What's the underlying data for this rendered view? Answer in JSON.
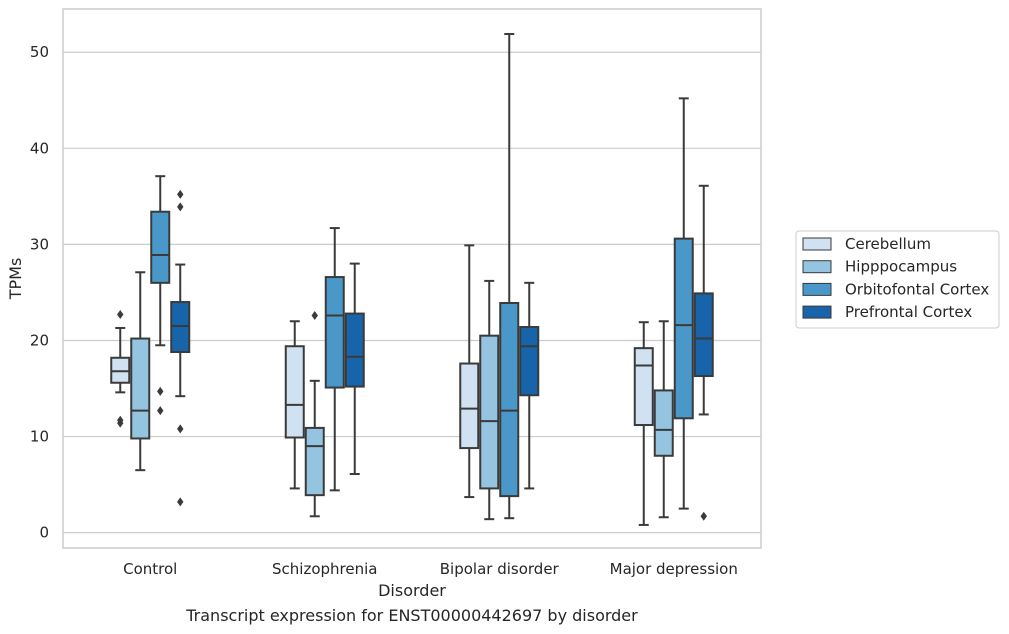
{
  "caption": "Transcript expression for ENST00000442697 by disorder",
  "chart_data": {
    "type": "box",
    "xlabel": "Disorder",
    "ylabel": "TPMs",
    "ylim": [
      -1.6,
      54.5
    ],
    "yticks": [
      0,
      10,
      20,
      30,
      40,
      50
    ],
    "grid": "horizontal",
    "legend_position": "right",
    "categories": [
      "Control",
      "Schizophrenia",
      "Bipolar disorder",
      "Major depression"
    ],
    "series": [
      {
        "name": "Cerebellum",
        "color": "#d0e1f2",
        "boxes": [
          {
            "whislo": 14.6,
            "q1": 15.6,
            "med": 16.8,
            "q3": 18.2,
            "whishi": 21.3,
            "fliers": [
              22.7,
              11.7,
              11.4
            ]
          },
          {
            "whislo": 4.6,
            "q1": 9.9,
            "med": 13.3,
            "q3": 19.4,
            "whishi": 22.0,
            "fliers": []
          },
          {
            "whislo": 3.7,
            "q1": 8.8,
            "med": 12.9,
            "q3": 17.6,
            "whishi": 29.9,
            "fliers": []
          },
          {
            "whislo": 0.8,
            "q1": 11.2,
            "med": 17.4,
            "q3": 19.2,
            "whishi": 21.9,
            "fliers": []
          }
        ]
      },
      {
        "name": "Hipppocampus",
        "color": "#94c4df",
        "boxes": [
          {
            "whislo": 6.5,
            "q1": 9.8,
            "med": 12.7,
            "q3": 20.2,
            "whishi": 27.1,
            "fliers": []
          },
          {
            "whislo": 1.7,
            "q1": 3.9,
            "med": 9.0,
            "q3": 10.9,
            "whishi": 15.8,
            "fliers": [
              22.6
            ]
          },
          {
            "whislo": 1.4,
            "q1": 4.6,
            "med": 11.6,
            "q3": 20.5,
            "whishi": 26.2,
            "fliers": []
          },
          {
            "whislo": 1.6,
            "q1": 8.0,
            "med": 10.7,
            "q3": 14.8,
            "whishi": 22.0,
            "fliers": []
          }
        ]
      },
      {
        "name": "Orbitofontal Cortex",
        "color": "#4a98c9",
        "boxes": [
          {
            "whislo": 19.5,
            "q1": 26.0,
            "med": 28.9,
            "q3": 33.4,
            "whishi": 37.1,
            "fliers": [
              14.7,
              12.7
            ]
          },
          {
            "whislo": 4.4,
            "q1": 15.1,
            "med": 22.6,
            "q3": 26.6,
            "whishi": 31.7,
            "fliers": []
          },
          {
            "whislo": 1.5,
            "q1": 3.8,
            "med": 12.7,
            "q3": 23.9,
            "whishi": 51.9,
            "fliers": []
          },
          {
            "whislo": 2.5,
            "q1": 11.9,
            "med": 21.6,
            "q3": 30.6,
            "whishi": 45.2,
            "fliers": []
          }
        ]
      },
      {
        "name": "Prefrontal Cortex",
        "color": "#1764ab",
        "boxes": [
          {
            "whislo": 14.2,
            "q1": 18.8,
            "med": 21.5,
            "q3": 24.0,
            "whishi": 27.9,
            "fliers": [
              35.2,
              33.9,
              10.8,
              3.2
            ]
          },
          {
            "whislo": 6.1,
            "q1": 15.2,
            "med": 18.3,
            "q3": 22.8,
            "whishi": 28.0,
            "fliers": []
          },
          {
            "whislo": 4.6,
            "q1": 14.3,
            "med": 19.4,
            "q3": 21.4,
            "whishi": 26.0,
            "fliers": []
          },
          {
            "whislo": 12.3,
            "q1": 16.3,
            "med": 20.2,
            "q3": 24.9,
            "whishi": 36.1,
            "fliers": [
              1.7
            ]
          }
        ]
      }
    ]
  }
}
